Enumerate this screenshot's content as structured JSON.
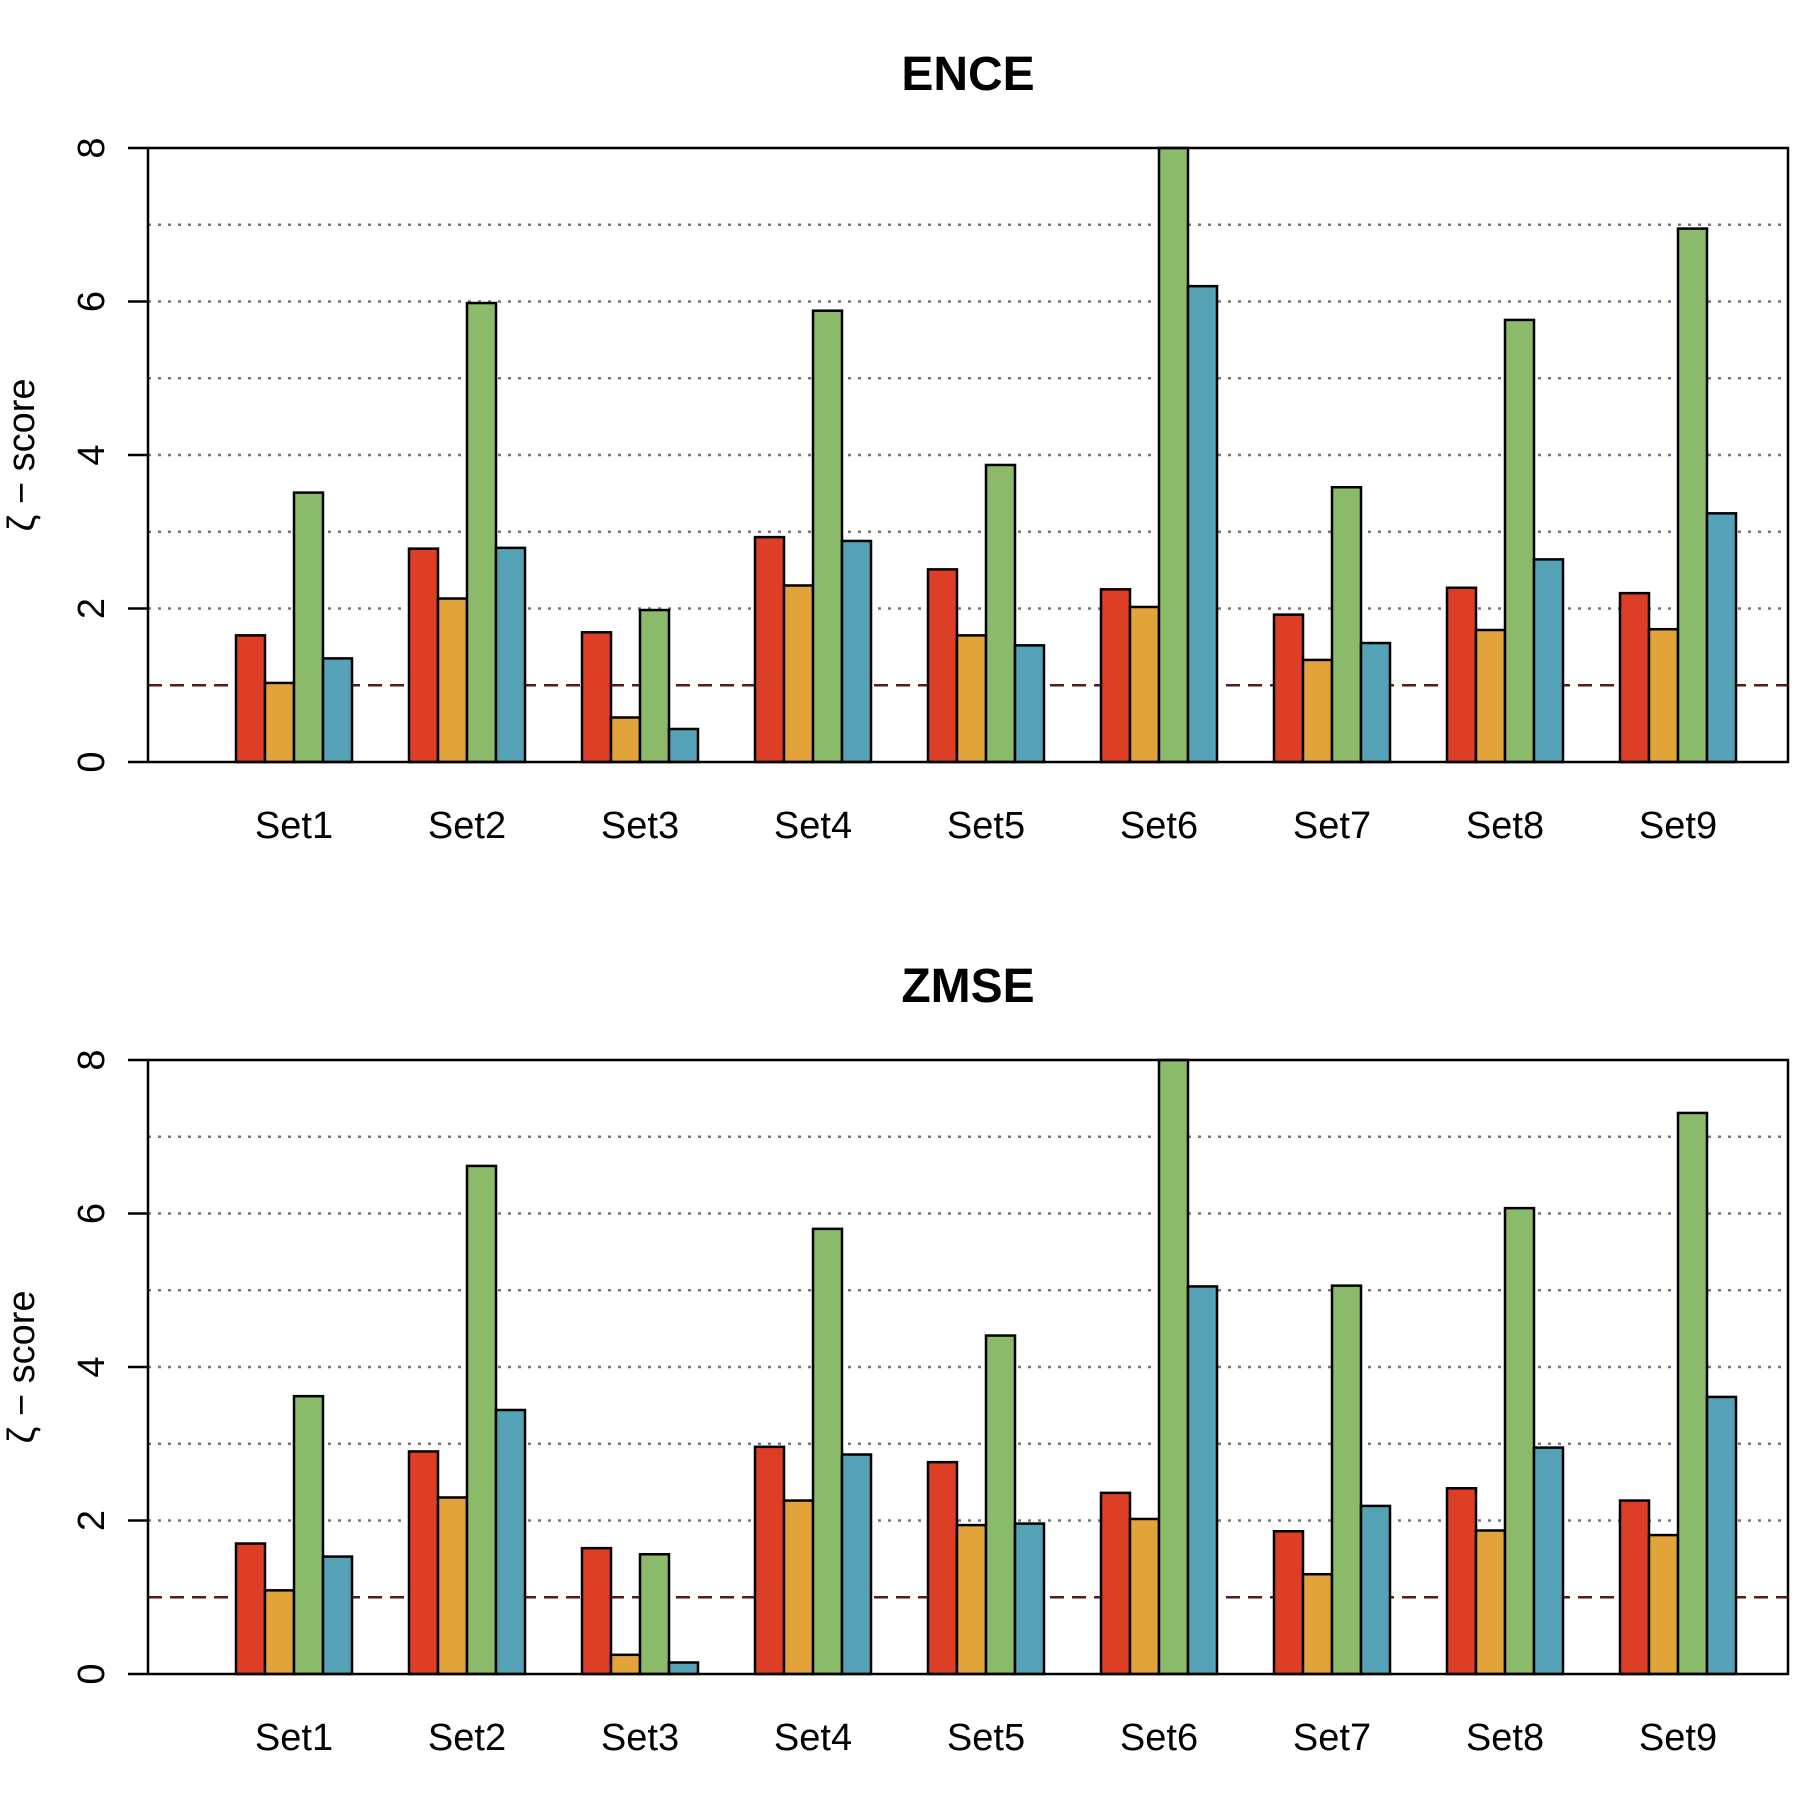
{
  "colors": {
    "series": [
      "#dc3e26",
      "#e2a43a",
      "#8aba6a",
      "#55a1b6"
    ],
    "grid": "#777777",
    "reference": "#5a1a14"
  },
  "chart_data": [
    {
      "type": "bar",
      "title": "ENCE",
      "xlabel": "",
      "ylabel": "ζ − score",
      "ylim": [
        0,
        8
      ],
      "yticks": [
        "0",
        "2",
        "4",
        "6",
        "8"
      ],
      "grid": true,
      "grid_levels": [
        1,
        2,
        3,
        4,
        5,
        6,
        7
      ],
      "reference_line": 1,
      "categories": [
        "Set1",
        "Set2",
        "Set3",
        "Set4",
        "Set5",
        "Set6",
        "Set7",
        "Set8",
        "Set9"
      ],
      "series": [
        {
          "values": [
            1.65,
            2.78,
            1.69,
            2.93,
            2.51,
            2.25,
            1.92,
            2.27,
            2.2
          ]
        },
        {
          "values": [
            1.03,
            2.13,
            0.58,
            2.3,
            1.65,
            2.02,
            1.33,
            1.72,
            1.73
          ]
        },
        {
          "values": [
            3.51,
            5.98,
            1.98,
            5.88,
            3.87,
            8.0,
            3.58,
            5.76,
            6.95
          ]
        },
        {
          "values": [
            1.35,
            2.79,
            0.43,
            2.88,
            1.52,
            6.2,
            1.55,
            2.64,
            3.24
          ]
        }
      ]
    },
    {
      "type": "bar",
      "title": "ZMSE",
      "xlabel": "",
      "ylabel": "ζ − score",
      "ylim": [
        0,
        8
      ],
      "yticks": [
        "0",
        "2",
        "4",
        "6",
        "8"
      ],
      "grid": true,
      "grid_levels": [
        1,
        2,
        3,
        4,
        5,
        6,
        7
      ],
      "reference_line": 1,
      "categories": [
        "Set1",
        "Set2",
        "Set3",
        "Set4",
        "Set5",
        "Set6",
        "Set7",
        "Set8",
        "Set9"
      ],
      "series": [
        {
          "values": [
            1.7,
            2.9,
            1.64,
            2.96,
            2.76,
            2.36,
            1.86,
            2.42,
            2.26
          ]
        },
        {
          "values": [
            1.09,
            2.3,
            0.25,
            2.26,
            1.94,
            2.02,
            1.3,
            1.87,
            1.81
          ]
        },
        {
          "values": [
            3.62,
            6.62,
            1.56,
            5.8,
            4.41,
            8.0,
            5.06,
            6.07,
            7.31
          ]
        },
        {
          "values": [
            1.53,
            3.44,
            0.15,
            2.86,
            1.96,
            5.05,
            2.19,
            2.95,
            3.61
          ]
        }
      ]
    }
  ]
}
